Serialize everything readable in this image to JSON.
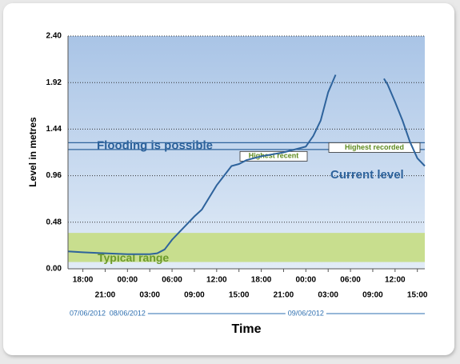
{
  "chart_data": {
    "type": "line",
    "y_label": "Level in metres",
    "x_label": "Time",
    "ylim": [
      0,
      2.4
    ],
    "yticks": [
      {
        "value": 0,
        "label": "0.00"
      },
      0.48,
      0.96,
      1.44,
      1.92,
      {
        "value": 2.4,
        "label": "2.40"
      }
    ],
    "xlim": [
      "07/06/2012 16:00",
      "09/06/2012 16:00"
    ],
    "xticks": [
      {
        "value": "07/06/2012 18:00",
        "label": "18:00"
      },
      {
        "value": "07/06/2012 21:00",
        "label": "21:00"
      },
      {
        "value": "08/06/2012 00:00",
        "label": "00:00"
      },
      {
        "value": "08/06/2012 03:00",
        "label": "03:00"
      },
      {
        "value": "08/06/2012 06:00",
        "label": "06:00"
      },
      {
        "value": "08/06/2012 09:00",
        "label": "09:00"
      },
      {
        "value": "08/06/2012 12:00",
        "label": "12:00"
      },
      {
        "value": "08/06/2012 15:00",
        "label": "15:00"
      },
      {
        "value": "08/06/2012 18:00",
        "label": "18:00"
      },
      {
        "value": "08/06/2012 21:00",
        "label": "21:00"
      },
      {
        "value": "09/06/2012 00:00",
        "label": "00:00"
      },
      {
        "value": "09/06/2012 03:00",
        "label": "03:00"
      },
      {
        "value": "09/06/2012 06:00",
        "label": "06:00"
      },
      {
        "value": "09/06/2012 09:00",
        "label": "09:00"
      },
      {
        "value": "09/06/2012 12:00",
        "label": "12:00"
      },
      {
        "value": "09/06/2012 15:00",
        "label": "15:00"
      }
    ],
    "date_ticks": [
      {
        "value": "07/06/2012 16:00",
        "label": "07/06/2012"
      },
      {
        "value": "08/06/2012 00:00",
        "label": "08/06/2012"
      },
      {
        "value": "09/06/2012 00:00",
        "label": "09/06/2012"
      }
    ],
    "grid": true,
    "x": [
      "07/06/2012 16:00",
      "07/06/2012 18:00",
      "07/06/2012 21:00",
      "08/06/2012 00:00",
      "08/06/2012 03:00",
      "08/06/2012 04:00",
      "08/06/2012 05:00",
      "08/06/2012 06:00",
      "08/06/2012 09:00",
      "08/06/2012 10:00",
      "08/06/2012 12:00",
      "08/06/2012 13:00",
      "08/06/2012 14:00",
      "08/06/2012 15:00",
      "08/06/2012 16:00",
      "08/06/2012 18:00",
      "08/06/2012 21:00",
      "09/06/2012 00:00",
      "09/06/2012 01:00",
      "09/06/2012 02:00",
      "09/06/2012 03:00",
      "09/06/2012 04:00",
      "09/06/2012 05:00",
      "09/06/2012 10:30",
      "09/06/2012 11:00",
      "09/06/2012 12:00",
      "09/06/2012 13:00",
      "09/06/2012 14:00",
      "09/06/2012 15:00",
      "09/06/2012 16:00"
    ],
    "series": [
      {
        "name": "Current level",
        "color": "#2e639c",
        "values": [
          0.18,
          0.17,
          0.16,
          0.15,
          0.15,
          0.16,
          0.2,
          0.3,
          0.54,
          0.61,
          0.86,
          0.96,
          1.06,
          1.08,
          1.12,
          1.16,
          1.2,
          1.26,
          1.37,
          1.53,
          1.82,
          2.0,
          null,
          1.96,
          1.9,
          1.72,
          1.53,
          1.31,
          1.14,
          1.06
        ]
      }
    ],
    "bands": [
      {
        "label": "Typical range",
        "from": 0.07,
        "to": 0.37,
        "color": "#c8de8e"
      }
    ],
    "thresholds": [
      {
        "label": "Flooding is possible",
        "from": 1.23,
        "to": 1.3,
        "color": "#2e639c"
      }
    ],
    "markers": [
      {
        "label": "Highest recent",
        "value": 1.16
      },
      {
        "label": "Highest recorded",
        "value": 1.25
      }
    ]
  }
}
